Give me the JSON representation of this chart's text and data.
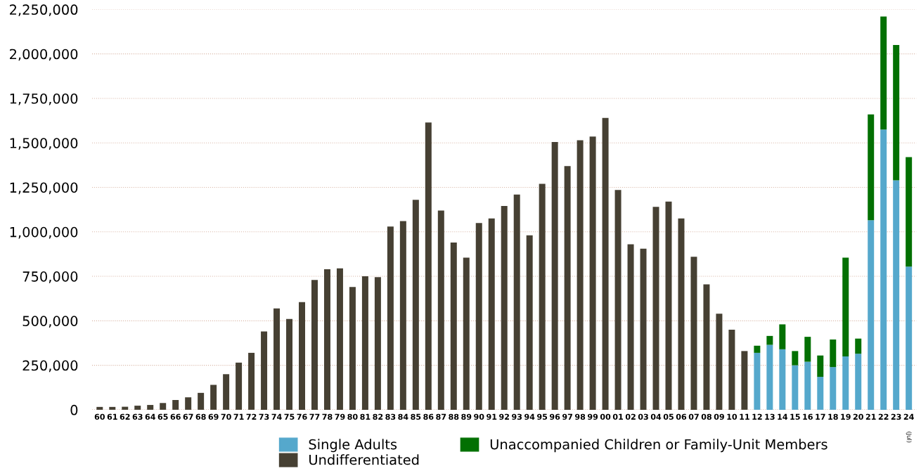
{
  "chart_data": {
    "type": "bar",
    "stacked": true,
    "categories": [
      "60",
      "61",
      "62",
      "63",
      "64",
      "65",
      "66",
      "67",
      "68",
      "69",
      "70",
      "71",
      "72",
      "73",
      "74",
      "75",
      "76",
      "77",
      "78",
      "79",
      "80",
      "81",
      "82",
      "83",
      "84",
      "85",
      "86",
      "87",
      "88",
      "89",
      "90",
      "91",
      "92",
      "93",
      "94",
      "95",
      "96",
      "97",
      "98",
      "99",
      "00",
      "01",
      "02",
      "03",
      "04",
      "05",
      "06",
      "07",
      "08",
      "09",
      "10",
      "11",
      "12",
      "13",
      "14",
      "15",
      "16",
      "17",
      "18",
      "19",
      "20",
      "21",
      "22",
      "23",
      "24"
    ],
    "series": [
      {
        "name": "Single Adults",
        "color": "#55a8cc",
        "values": [
          null,
          null,
          null,
          null,
          null,
          null,
          null,
          null,
          null,
          null,
          null,
          null,
          null,
          null,
          null,
          null,
          null,
          null,
          null,
          null,
          null,
          null,
          null,
          null,
          null,
          null,
          null,
          null,
          null,
          null,
          null,
          null,
          null,
          null,
          null,
          null,
          null,
          null,
          null,
          null,
          null,
          null,
          null,
          null,
          null,
          null,
          null,
          null,
          null,
          null,
          null,
          null,
          320000,
          365000,
          340000,
          250000,
          270000,
          185000,
          240000,
          300000,
          315000,
          1065000,
          1575000,
          1290000,
          805000
        ]
      },
      {
        "name": "Unaccompanied Children or Family-Unit Members",
        "color": "#037003",
        "values": [
          null,
          null,
          null,
          null,
          null,
          null,
          null,
          null,
          null,
          null,
          null,
          null,
          null,
          null,
          null,
          null,
          null,
          null,
          null,
          null,
          null,
          null,
          null,
          null,
          null,
          null,
          null,
          null,
          null,
          null,
          null,
          null,
          null,
          null,
          null,
          null,
          null,
          null,
          null,
          null,
          null,
          null,
          null,
          null,
          null,
          null,
          null,
          null,
          null,
          null,
          null,
          null,
          40000,
          50000,
          140000,
          80000,
          140000,
          120000,
          155000,
          555000,
          85000,
          595000,
          635000,
          760000,
          615000
        ]
      },
      {
        "name": "Undifferentiated",
        "color": "#464033",
        "values": [
          16000,
          16000,
          17000,
          23000,
          27000,
          38000,
          55000,
          70000,
          95000,
          140000,
          200000,
          265000,
          320000,
          440000,
          570000,
          510000,
          605000,
          730000,
          790000,
          795000,
          690000,
          750000,
          745000,
          1030000,
          1060000,
          1180000,
          1615000,
          1120000,
          940000,
          855000,
          1050000,
          1075000,
          1145000,
          1210000,
          980000,
          1270000,
          1505000,
          1370000,
          1515000,
          1535000,
          1640000,
          1235000,
          930000,
          905000,
          1140000,
          1170000,
          1075000,
          860000,
          705000,
          540000,
          450000,
          330000,
          null,
          null,
          null,
          null,
          null,
          null,
          null,
          null,
          null,
          null,
          null,
          null,
          null
        ]
      }
    ],
    "ylim": [
      0,
      2250000
    ],
    "yticks": [
      {
        "value": 0,
        "label": "0"
      },
      {
        "value": 250000,
        "label": "250,000"
      },
      {
        "value": 500000,
        "label": "500,000"
      },
      {
        "value": 750000,
        "label": "750,000"
      },
      {
        "value": 1000000,
        "label": "1,000,000"
      },
      {
        "value": 1250000,
        "label": "1,250,000"
      },
      {
        "value": 1500000,
        "label": "1,500,000"
      },
      {
        "value": 1750000,
        "label": "1,750,000"
      },
      {
        "value": 2000000,
        "label": "2,000,000"
      },
      {
        "value": 2250000,
        "label": "2,250,000"
      }
    ],
    "grid": "y",
    "legend": "bottom",
    "annotations": [
      "(Jul)"
    ]
  }
}
